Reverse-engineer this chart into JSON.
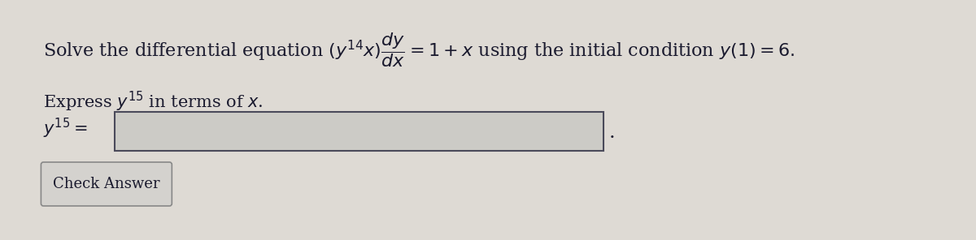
{
  "background_color": "#dedad4",
  "title_line": "Solve the differential equation $(y^{14}x)\\dfrac{dy}{dx} = 1 + x$ using the initial condition $y(1) = 6.$",
  "express_line": "Express $y^{15}$ in terms of $x$.",
  "label_line": "$y^{15} = $",
  "button_text": "Check Answer",
  "text_color": "#1a1a2e",
  "input_box_color": "#cccbc6",
  "input_box_edge_color": "#4a4a5a",
  "button_bg": "#d4d2ce",
  "button_edge": "#888888",
  "font_size_main": 16,
  "font_size_label": 15,
  "font_size_button": 13,
  "dot_after_box": "."
}
